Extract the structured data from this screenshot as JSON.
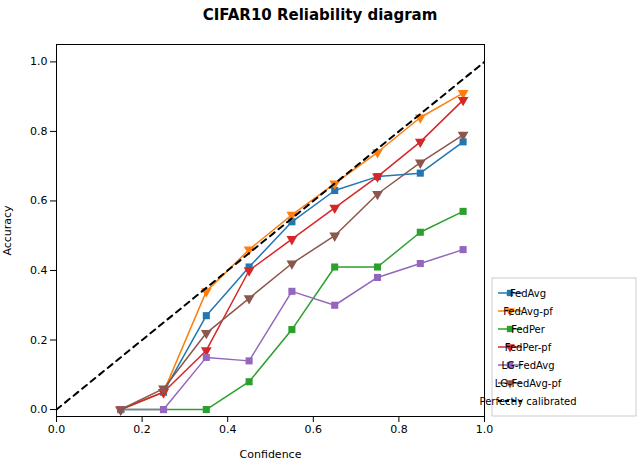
{
  "chart_data": {
    "type": "line",
    "title": "CIFAR10 Reliability diagram",
    "xlabel": "Confidence",
    "ylabel": "Accuracy",
    "xlim": [
      0.0,
      1.0
    ],
    "ylim": [
      -0.02,
      1.05
    ],
    "xticks": [
      {
        "value": 0.0,
        "label": "0.0"
      },
      0.2,
      0.4,
      0.6,
      0.8,
      {
        "value": 1.0,
        "label": "1.0"
      }
    ],
    "yticks": [
      {
        "value": 0.0,
        "label": "0.0"
      },
      0.2,
      0.4,
      0.6,
      0.8,
      {
        "value": 1.0,
        "label": "1.0"
      }
    ],
    "legend": "lower right",
    "series": [
      {
        "name": "FedAvg",
        "color": "#1f77b4",
        "marker": "square",
        "x": [
          0.15,
          0.25,
          0.35,
          0.45,
          0.55,
          0.65,
          0.75,
          0.85,
          0.95
        ],
        "values": [
          0.0,
          0.05,
          0.27,
          0.41,
          0.54,
          0.63,
          0.67,
          0.68,
          0.77
        ]
      },
      {
        "name": "FedAvg-pf",
        "color": "#ff7f0e",
        "marker": "triangle-down",
        "x": [
          0.15,
          0.25,
          0.35,
          0.45,
          0.55,
          0.65,
          0.75,
          0.85,
          0.95
        ],
        "values": [
          0.0,
          0.05,
          0.34,
          0.46,
          0.56,
          0.65,
          0.74,
          0.84,
          0.91
        ]
      },
      {
        "name": "FedPer",
        "color": "#2ca02c",
        "marker": "square",
        "x": [
          0.15,
          0.25,
          0.35,
          0.45,
          0.55,
          0.65,
          0.75,
          0.85,
          0.95
        ],
        "values": [
          0.0,
          0.0,
          0.0,
          0.08,
          0.23,
          0.41,
          0.41,
          0.51,
          0.57
        ]
      },
      {
        "name": "FedPer-pf",
        "color": "#d62728",
        "marker": "triangle-down",
        "x": [
          0.15,
          0.25,
          0.35,
          0.45,
          0.55,
          0.65,
          0.75,
          0.85,
          0.95
        ],
        "values": [
          0.0,
          0.05,
          0.17,
          0.4,
          0.49,
          0.58,
          0.67,
          0.77,
          0.89
        ]
      },
      {
        "name": "LG-FedAvg",
        "color": "#9467bd",
        "marker": "square",
        "x": [
          0.15,
          0.25,
          0.35,
          0.45,
          0.55,
          0.65,
          0.75,
          0.85,
          0.95
        ],
        "values": [
          0.0,
          0.0,
          0.15,
          0.14,
          0.34,
          0.3,
          0.38,
          0.42,
          0.46
        ]
      },
      {
        "name": "LG-FedAvg-pf",
        "color": "#8c564b",
        "marker": "triangle-down",
        "x": [
          0.15,
          0.25,
          0.35,
          0.45,
          0.55,
          0.65,
          0.75,
          0.85,
          0.95
        ],
        "values": [
          0.0,
          0.06,
          0.22,
          0.32,
          0.42,
          0.5,
          0.62,
          0.71,
          0.79
        ]
      },
      {
        "name": "Perfectly calibrated",
        "color": "black",
        "line_style": "dashed",
        "x": [
          0.0,
          1.0
        ],
        "values": [
          0.0,
          1.0
        ]
      }
    ]
  }
}
